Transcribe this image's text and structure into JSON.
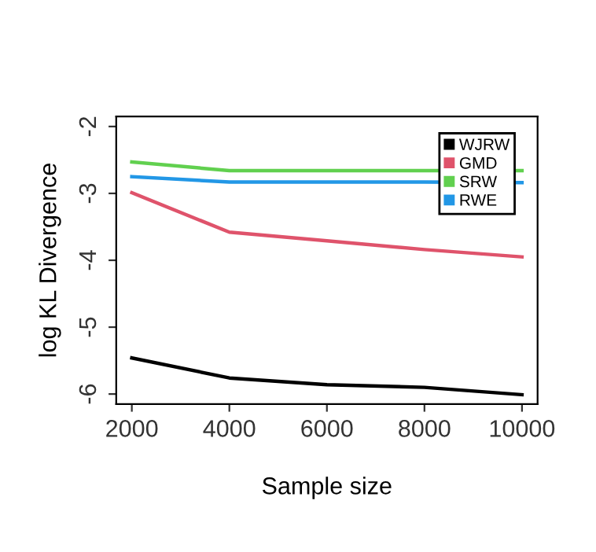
{
  "chart_data": {
    "type": "line",
    "xlabel": "Sample size",
    "ylabel": "log KL Divergence",
    "x": [
      2000,
      4000,
      6000,
      8000,
      10000
    ],
    "series": [
      {
        "name": "WJRW",
        "color": "#000000",
        "values": [
          -5.46,
          -5.76,
          -5.86,
          -5.9,
          -6.01
        ]
      },
      {
        "name": "GMD",
        "color": "#df536b",
        "values": [
          -2.99,
          -3.58,
          -3.71,
          -3.84,
          -3.95
        ]
      },
      {
        "name": "SRW",
        "color": "#61d04f",
        "values": [
          -2.53,
          -2.66,
          -2.66,
          -2.66,
          -2.66
        ]
      },
      {
        "name": "RWE",
        "color": "#2297e6",
        "values": [
          -2.75,
          -2.83,
          -2.83,
          -2.83,
          -2.84
        ]
      }
    ],
    "xlim": [
      1680,
      10320
    ],
    "xticks": [
      2000,
      4000,
      6000,
      8000,
      10000
    ],
    "ylim": [
      -6.15,
      -1.85
    ],
    "yticks": [
      -6,
      -5,
      -4,
      -3,
      -2
    ],
    "grid": false,
    "legend": "top right",
    "marker": "none",
    "line_style": "solid"
  }
}
